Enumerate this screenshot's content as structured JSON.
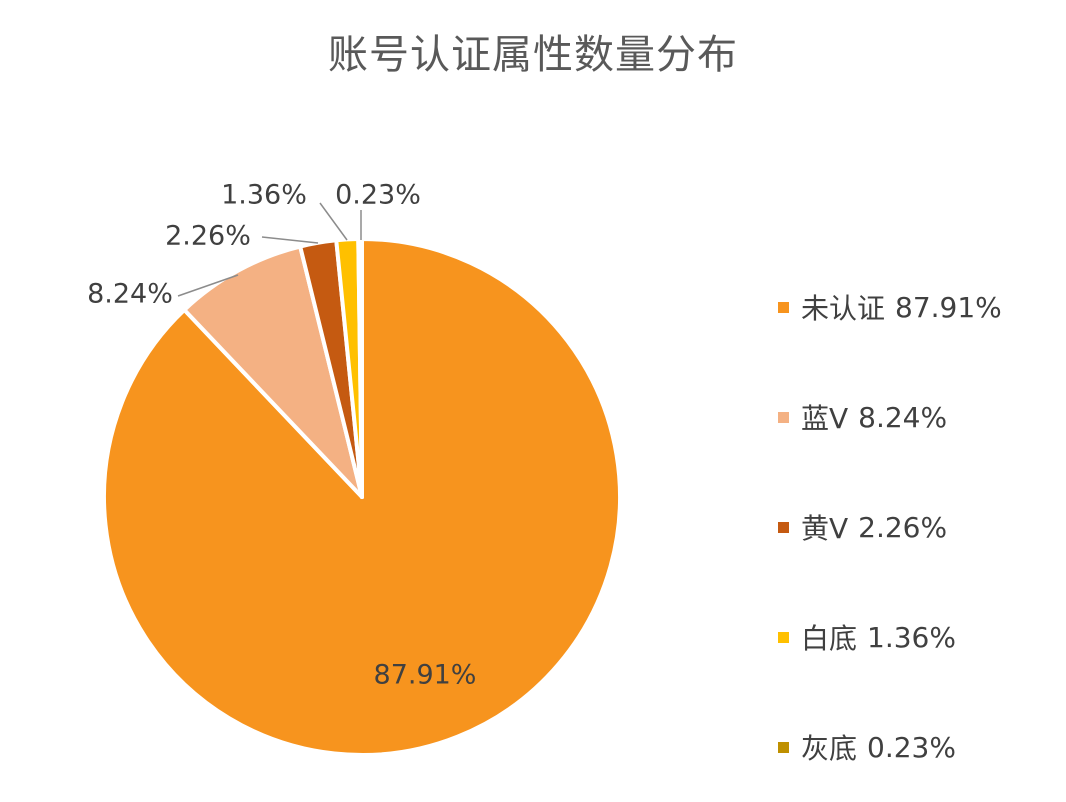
{
  "chart_data": {
    "type": "pie",
    "title": "账号认证属性数量分布",
    "slices": [
      {
        "label": "未认证",
        "value": 87.91,
        "value_label": "87.91%",
        "color": "#F7941E"
      },
      {
        "label": "蓝V",
        "value": 8.24,
        "value_label": "8.24%",
        "color": "#F4B183"
      },
      {
        "label": "黄V",
        "value": 2.26,
        "value_label": "2.26%",
        "color": "#C55A11"
      },
      {
        "label": "白底",
        "value": 1.36,
        "value_label": "1.36%",
        "color": "#FFC000"
      },
      {
        "label": "灰底",
        "value": 0.23,
        "value_label": "0.23%",
        "color": "#BF9000"
      }
    ],
    "legend": "right"
  }
}
